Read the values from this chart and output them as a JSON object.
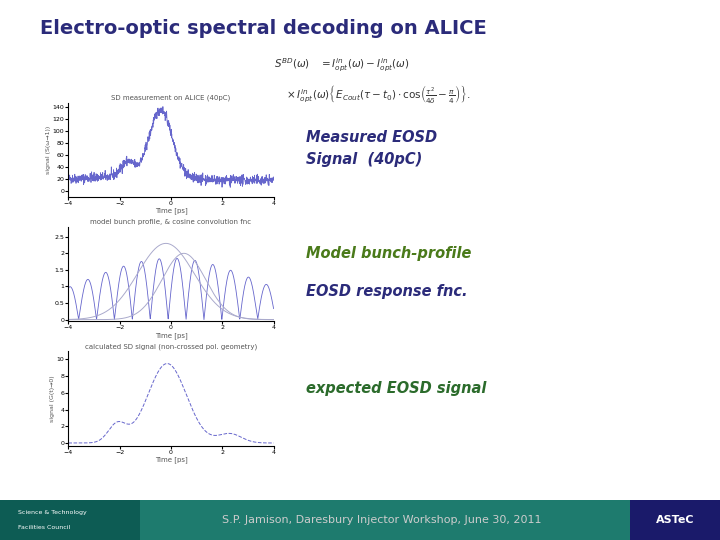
{
  "title": "Electro-optic spectral decoding on ALICE",
  "title_color": "#2B2B7A",
  "title_fontsize": 14,
  "bg_color": "#FFFFFF",
  "footer_text": "S.P. Jamison, Daresbury Injector Workshop, June 30, 2011",
  "footer_text_color": "#CCCCCC",
  "plot1_title": "SD measurement on ALICE (40pC)",
  "plot1_xlabel": "Time [ps]",
  "plot1_ylabel": "signal (S(ω→1))",
  "plot2_title": "model bunch profile, & cosine convolution fnc",
  "plot2_xlabel": "Time [ps]",
  "plot3_title": "calculated SD signal (non-crossed pol. geometry)",
  "plot3_xlabel": "Time [ps]",
  "plot3_ylabel": "signal (G(t)→0)",
  "label1_line1": "Measured EOSD",
  "label1_line2": "Signal  (40pC)",
  "label1_color": "#2B2B7A",
  "label2": "Model bunch-profile",
  "label2_color": "#4A7A1A",
  "label3": "EOSD response fnc.",
  "label3_color": "#2B2B7A",
  "label4": "expected EOSD signal",
  "label4_color": "#2B6B2B",
  "line_color": "#6666CC",
  "line_color2": "#AAAACC",
  "footer_teal": "#1E7B6E",
  "footer_purple": "#6B1A5A",
  "footer_dark_teal": "#0D5C54",
  "footer_astec_blue": "#1A1A6A"
}
